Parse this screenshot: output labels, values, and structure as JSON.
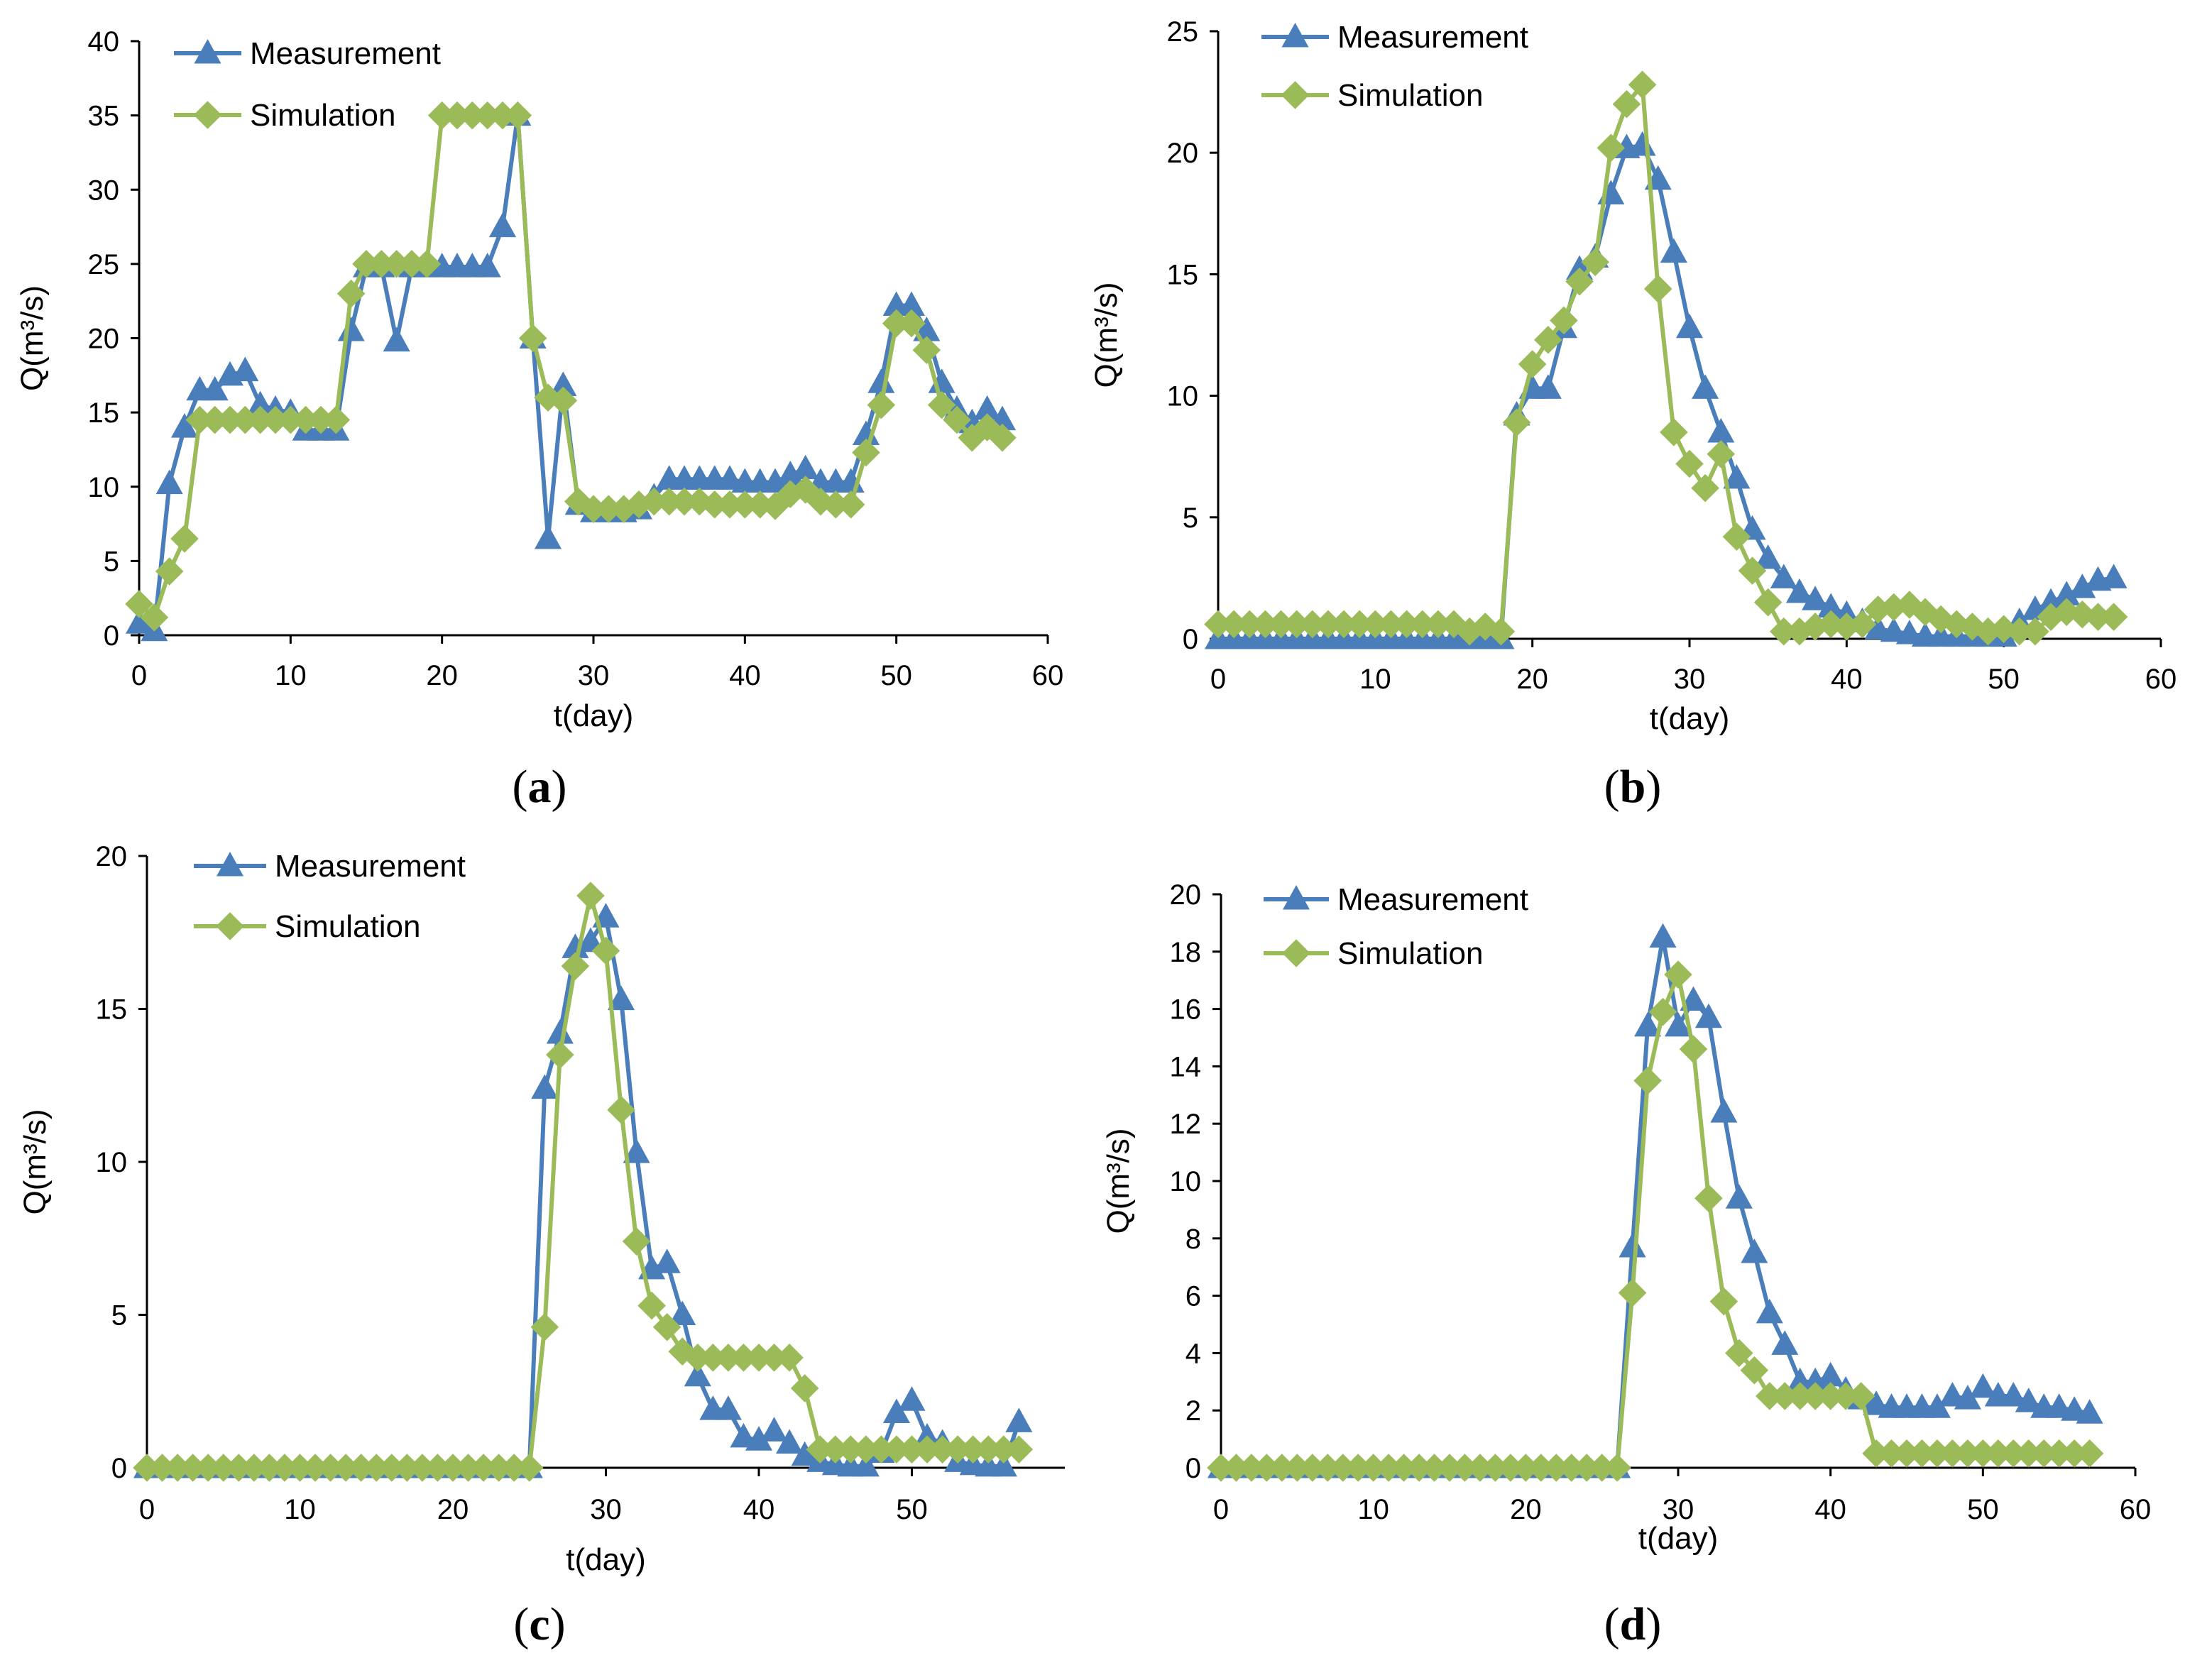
{
  "figure": {
    "colors": {
      "measurement": "#4a7ebb",
      "simulation": "#9bbb59"
    },
    "legend": {
      "measurement": "Measurement",
      "simulation": "Simulation"
    }
  },
  "chart_data": [
    {
      "panel": "a",
      "type": "line",
      "xlabel": "t(day)",
      "ylabel": "Q(m³/s)",
      "xlim": [
        0,
        60
      ],
      "ylim": [
        0,
        40
      ],
      "xticks": [
        0,
        10,
        20,
        30,
        40,
        50,
        60
      ],
      "yticks": [
        0,
        5,
        10,
        15,
        20,
        25,
        30,
        35,
        40
      ],
      "legend_position": "top-left",
      "x": [
        0,
        1,
        2,
        3,
        4,
        5,
        6,
        7,
        8,
        9,
        10,
        11,
        12,
        13,
        14,
        15,
        16,
        17,
        18,
        19,
        20,
        21,
        22,
        23,
        24,
        25,
        26,
        27,
        28,
        29,
        30,
        31,
        32,
        33,
        34,
        35,
        36,
        37,
        38,
        39,
        40,
        41,
        42,
        43,
        44,
        45,
        46,
        47,
        48,
        49,
        50,
        51,
        52,
        53,
        54,
        55,
        56,
        57
      ],
      "series": [
        {
          "name": "Measurement",
          "marker": "triangle",
          "values": [
            0.8,
            0.3,
            10.2,
            14.0,
            16.5,
            16.5,
            17.5,
            17.8,
            15.5,
            15.2,
            15.0,
            13.8,
            13.8,
            13.8,
            20.5,
            24.8,
            24.8,
            19.8,
            24.8,
            24.8,
            24.8,
            24.8,
            24.8,
            24.8,
            27.5,
            35.0,
            20.0,
            6.5,
            16.8,
            8.8,
            8.3,
            8.3,
            8.3,
            8.5,
            9.3,
            10.5,
            10.5,
            10.5,
            10.5,
            10.5,
            10.3,
            10.3,
            10.3,
            10.8,
            11.2,
            10.3,
            10.3,
            10.3,
            13.5,
            17.0,
            22.2,
            22.2,
            20.5,
            17.0,
            15.2,
            14.3,
            15.2,
            14.5
          ]
        },
        {
          "name": "Simulation",
          "marker": "diamond",
          "values": [
            2.1,
            1.2,
            4.3,
            6.5,
            14.5,
            14.5,
            14.5,
            14.5,
            14.5,
            14.5,
            14.5,
            14.5,
            14.5,
            14.5,
            23.0,
            25.0,
            25.0,
            25.0,
            25.0,
            25.0,
            35.0,
            35.0,
            35.0,
            35.0,
            35.0,
            35.0,
            20.0,
            16.0,
            15.8,
            9.0,
            8.5,
            8.5,
            8.5,
            8.8,
            9.0,
            9.0,
            9.0,
            9.0,
            8.8,
            8.8,
            8.8,
            8.8,
            8.7,
            9.5,
            9.8,
            9.0,
            8.8,
            8.8,
            12.3,
            15.5,
            21.0,
            21.0,
            19.2,
            15.5,
            14.5,
            13.3,
            14.0,
            13.3
          ]
        }
      ],
      "caption": "(a)"
    },
    {
      "panel": "b",
      "type": "line",
      "xlabel": "t(day)",
      "ylabel": "Q(m³/s)",
      "xlim": [
        0,
        60
      ],
      "ylim": [
        0,
        25
      ],
      "xticks": [
        0,
        10,
        20,
        30,
        40,
        50,
        60
      ],
      "yticks": [
        0,
        5,
        10,
        15,
        20,
        25
      ],
      "legend_position": "top-left",
      "x": [
        0,
        1,
        2,
        3,
        4,
        5,
        6,
        7,
        8,
        9,
        10,
        11,
        12,
        13,
        14,
        15,
        16,
        17,
        18,
        19,
        20,
        21,
        22,
        23,
        24,
        25,
        26,
        27,
        28,
        29,
        30,
        31,
        32,
        33,
        34,
        35,
        36,
        37,
        38,
        39,
        40,
        41,
        42,
        43,
        44,
        45,
        46,
        47,
        48,
        49,
        50,
        51,
        52,
        53,
        54,
        55,
        56,
        57
      ],
      "series": [
        {
          "name": "Measurement",
          "marker": "triangle",
          "values": [
            0,
            0,
            0,
            0,
            0,
            0,
            0,
            0,
            0,
            0,
            0,
            0,
            0,
            0,
            0,
            0,
            0,
            0,
            0,
            9.2,
            10.3,
            10.3,
            12.8,
            15.2,
            15.7,
            18.3,
            20.2,
            20.3,
            18.9,
            15.9,
            12.8,
            10.3,
            8.5,
            6.6,
            4.5,
            3.3,
            2.5,
            1.9,
            1.6,
            1.3,
            1.0,
            0.7,
            0.4,
            0.3,
            0.2,
            0.1,
            0.1,
            0.1,
            0.1,
            0.1,
            0.1,
            0.7,
            1.2,
            1.5,
            1.8,
            2.1,
            2.4,
            2.5
          ]
        },
        {
          "name": "Simulation",
          "marker": "diamond",
          "values": [
            0.6,
            0.6,
            0.6,
            0.6,
            0.6,
            0.6,
            0.6,
            0.6,
            0.6,
            0.6,
            0.6,
            0.6,
            0.6,
            0.6,
            0.6,
            0.6,
            0.3,
            0.5,
            0.3,
            8.9,
            11.3,
            12.3,
            13.1,
            14.7,
            15.5,
            20.2,
            22.0,
            22.8,
            14.4,
            8.5,
            7.2,
            6.2,
            7.6,
            4.2,
            2.8,
            1.5,
            0.3,
            0.3,
            0.5,
            0.6,
            0.5,
            0.6,
            1.2,
            1.3,
            1.4,
            1.1,
            0.8,
            0.6,
            0.5,
            0.3,
            0.4,
            0.3,
            0.3,
            0.9,
            1.1,
            1.0,
            0.9,
            0.9
          ]
        }
      ],
      "caption": "(b)"
    },
    {
      "panel": "c",
      "type": "line",
      "xlabel": "t(day)",
      "ylabel": "Q(m³/s)",
      "xlim": [
        0,
        60
      ],
      "ylim": [
        0,
        20
      ],
      "xticks": [
        0,
        10,
        20,
        30,
        40,
        50
      ],
      "yticks": [
        0,
        5,
        10,
        15,
        20
      ],
      "legend_position": "top-left",
      "x": [
        0,
        1,
        2,
        3,
        4,
        5,
        6,
        7,
        8,
        9,
        10,
        11,
        12,
        13,
        14,
        15,
        16,
        17,
        18,
        19,
        20,
        21,
        22,
        23,
        24,
        25,
        26,
        27,
        28,
        29,
        30,
        31,
        32,
        33,
        34,
        35,
        36,
        37,
        38,
        39,
        40,
        41,
        42,
        43,
        44,
        45,
        46,
        47,
        48,
        49,
        50,
        51,
        52,
        53,
        54,
        55,
        56,
        57
      ],
      "series": [
        {
          "name": "Measurement",
          "marker": "triangle",
          "values": [
            0,
            0,
            0,
            0,
            0,
            0,
            0,
            0,
            0,
            0,
            0,
            0,
            0,
            0,
            0,
            0,
            0,
            0,
            0,
            0,
            0,
            0,
            0,
            0,
            0,
            0,
            12.4,
            14.2,
            17.0,
            17.2,
            18.0,
            15.3,
            10.3,
            6.5,
            6.7,
            5.0,
            3.0,
            1.9,
            1.9,
            1.0,
            0.9,
            1.2,
            0.8,
            0.4,
            0.2,
            0.1,
            0.05,
            0.05,
            0.5,
            1.8,
            2.2,
            1.0,
            0.8,
            0.2,
            0.1,
            0.05,
            0.05,
            1.5
          ]
        },
        {
          "name": "Simulation",
          "marker": "diamond",
          "values": [
            0,
            0,
            0,
            0,
            0,
            0,
            0,
            0,
            0,
            0,
            0,
            0,
            0,
            0,
            0,
            0,
            0,
            0,
            0,
            0,
            0,
            0,
            0,
            0,
            0,
            0,
            4.6,
            13.5,
            16.4,
            18.7,
            16.9,
            11.7,
            7.4,
            5.3,
            4.6,
            3.8,
            3.6,
            3.6,
            3.6,
            3.6,
            3.6,
            3.6,
            3.6,
            2.6,
            0.6,
            0.6,
            0.6,
            0.6,
            0.6,
            0.6,
            0.6,
            0.6,
            0.6,
            0.6,
            0.6,
            0.6,
            0.6,
            0.6
          ]
        }
      ],
      "caption": "(c)"
    },
    {
      "panel": "d",
      "type": "line",
      "xlabel": "t(day)",
      "ylabel": "Q(m³/s)",
      "xlim": [
        0,
        60
      ],
      "ylim": [
        0,
        20
      ],
      "xticks": [
        0,
        10,
        20,
        30,
        40,
        50,
        60
      ],
      "yticks": [
        0,
        2,
        4,
        6,
        8,
        10,
        12,
        14,
        16,
        18,
        20
      ],
      "legend_position": "top-left",
      "x": [
        0,
        1,
        2,
        3,
        4,
        5,
        6,
        7,
        8,
        9,
        10,
        11,
        12,
        13,
        14,
        15,
        16,
        17,
        18,
        19,
        20,
        21,
        22,
        23,
        24,
        25,
        26,
        27,
        28,
        29,
        30,
        31,
        32,
        33,
        34,
        35,
        36,
        37,
        38,
        39,
        40,
        41,
        42,
        43,
        44,
        45,
        46,
        47,
        48,
        49,
        50,
        51,
        52,
        53,
        54,
        55,
        56,
        57
      ],
      "series": [
        {
          "name": "Measurement",
          "marker": "triangle",
          "values": [
            0,
            0,
            0,
            0,
            0,
            0,
            0,
            0,
            0,
            0,
            0,
            0,
            0,
            0,
            0,
            0,
            0,
            0,
            0,
            0,
            0,
            0,
            0,
            0,
            0,
            0,
            0,
            7.7,
            15.4,
            18.5,
            15.4,
            16.3,
            15.7,
            12.4,
            9.4,
            7.5,
            5.4,
            4.3,
            3.0,
            3.0,
            3.2,
            2.7,
            2.4,
            2.2,
            2.1,
            2.1,
            2.1,
            2.1,
            2.5,
            2.4,
            2.8,
            2.5,
            2.5,
            2.3,
            2.1,
            2.1,
            2.0,
            1.9
          ]
        },
        {
          "name": "Simulation",
          "marker": "diamond",
          "values": [
            0,
            0,
            0,
            0,
            0,
            0,
            0,
            0,
            0,
            0,
            0,
            0,
            0,
            0,
            0,
            0,
            0,
            0,
            0,
            0,
            0,
            0,
            0,
            0,
            0,
            0,
            0,
            6.1,
            13.5,
            15.9,
            17.2,
            14.6,
            9.4,
            5.8,
            4.0,
            3.4,
            2.5,
            2.5,
            2.5,
            2.5,
            2.5,
            2.5,
            2.5,
            0.5,
            0.5,
            0.5,
            0.5,
            0.5,
            0.5,
            0.5,
            0.5,
            0.5,
            0.5,
            0.5,
            0.5,
            0.5,
            0.5,
            0.5
          ]
        }
      ],
      "caption": "(d)"
    }
  ]
}
